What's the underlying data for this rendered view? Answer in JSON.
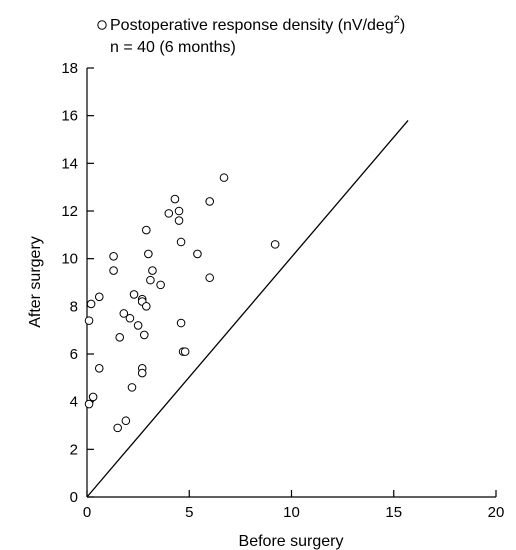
{
  "chart_data": {
    "type": "scatter",
    "title_line1": "Postoperative response density (nV/deg",
    "title_sup": "2",
    "title_close": ")",
    "title_line2": "n = 40 (6 months)",
    "xlabel": "Before surgery",
    "ylabel": "After surgery",
    "xlim": [
      0,
      20
    ],
    "ylim": [
      0,
      18
    ],
    "xticks": [
      0,
      5,
      10,
      15,
      20
    ],
    "yticks": [
      0,
      2,
      4,
      6,
      8,
      10,
      12,
      14,
      16,
      18
    ],
    "grid": false,
    "reference_line": {
      "from": [
        0,
        0
      ],
      "to": [
        15.7,
        15.8
      ]
    },
    "points": [
      {
        "x": 0.3,
        "y": 4.2
      },
      {
        "x": 0.1,
        "y": 3.9
      },
      {
        "x": 0.1,
        "y": 7.4
      },
      {
        "x": 0.2,
        "y": 8.1
      },
      {
        "x": 0.6,
        "y": 8.4
      },
      {
        "x": 0.6,
        "y": 5.4
      },
      {
        "x": 1.3,
        "y": 10.1
      },
      {
        "x": 1.3,
        "y": 9.5
      },
      {
        "x": 1.5,
        "y": 2.9
      },
      {
        "x": 1.6,
        "y": 6.7
      },
      {
        "x": 1.8,
        "y": 7.7
      },
      {
        "x": 1.9,
        "y": 3.2
      },
      {
        "x": 2.1,
        "y": 7.5
      },
      {
        "x": 2.2,
        "y": 4.6
      },
      {
        "x": 2.3,
        "y": 8.5
      },
      {
        "x": 2.5,
        "y": 7.2
      },
      {
        "x": 2.7,
        "y": 8.3
      },
      {
        "x": 2.7,
        "y": 8.2
      },
      {
        "x": 2.7,
        "y": 5.4
      },
      {
        "x": 2.7,
        "y": 5.2
      },
      {
        "x": 2.8,
        "y": 6.8
      },
      {
        "x": 2.9,
        "y": 11.2
      },
      {
        "x": 3.0,
        "y": 10.2
      },
      {
        "x": 2.9,
        "y": 8.0
      },
      {
        "x": 3.1,
        "y": 9.1
      },
      {
        "x": 3.2,
        "y": 9.5
      },
      {
        "x": 3.6,
        "y": 8.9
      },
      {
        "x": 4.0,
        "y": 11.9
      },
      {
        "x": 4.3,
        "y": 12.5
      },
      {
        "x": 4.5,
        "y": 12.0
      },
      {
        "x": 4.5,
        "y": 11.6
      },
      {
        "x": 4.6,
        "y": 10.7
      },
      {
        "x": 4.6,
        "y": 7.3
      },
      {
        "x": 4.7,
        "y": 6.1
      },
      {
        "x": 4.8,
        "y": 6.1
      },
      {
        "x": 5.4,
        "y": 10.2
      },
      {
        "x": 6.0,
        "y": 12.4
      },
      {
        "x": 6.0,
        "y": 9.2
      },
      {
        "x": 6.7,
        "y": 13.4
      },
      {
        "x": 9.2,
        "y": 10.6
      }
    ]
  }
}
